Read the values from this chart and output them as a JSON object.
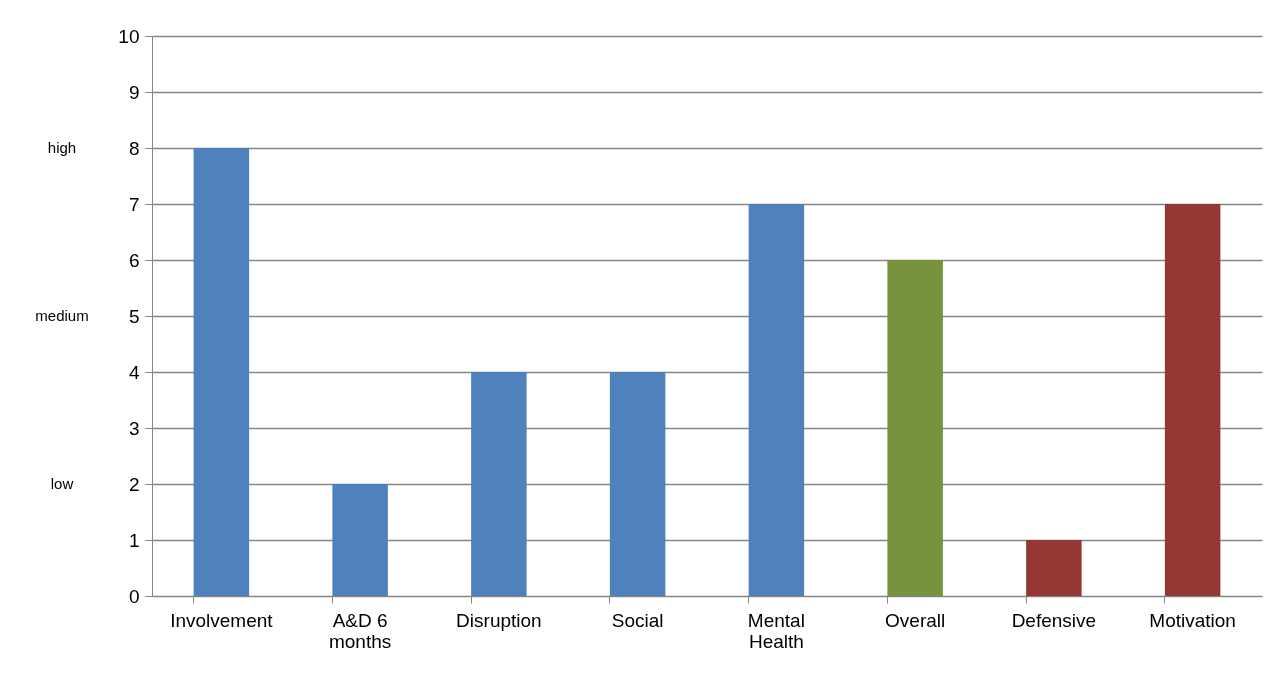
{
  "chart_data": {
    "type": "bar",
    "categories": [
      "Involvement",
      "A&D 6 months",
      "Disruption",
      "Social",
      "Mental Health",
      "Overall",
      "Defensive",
      "Motivation"
    ],
    "values": [
      8,
      2,
      4,
      4,
      7,
      6,
      1,
      7
    ],
    "colors": [
      "#4f81bd",
      "#4f81bd",
      "#4f81bd",
      "#4f81bd",
      "#4f81bd",
      "#77933c",
      "#953735",
      "#953735"
    ],
    "ylim": [
      0,
      10
    ],
    "yticks": [
      0,
      1,
      2,
      3,
      4,
      5,
      6,
      7,
      8,
      9,
      10
    ],
    "grid": "y",
    "annotations": [
      "high",
      "medium",
      "low"
    ]
  }
}
